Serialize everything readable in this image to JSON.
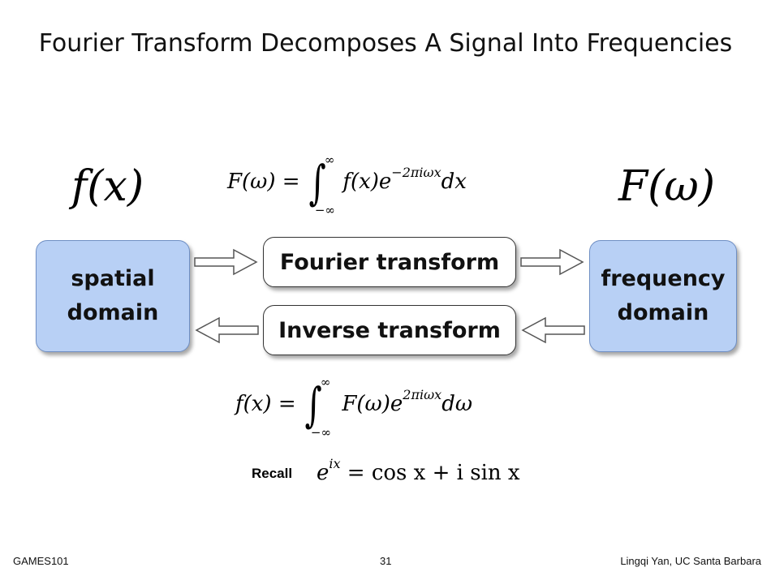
{
  "slide": {
    "title": "Fourier Transform Decomposes A Signal Into Frequencies",
    "footer_left": "GAMES101",
    "page_number": "31",
    "footer_right": "Lingqi Yan, UC Santa Barbara"
  },
  "diagram": {
    "left_symbol": "f(x)",
    "right_symbol": "F(ω)",
    "spatial_box": {
      "line1": "spatial",
      "line2": "domain"
    },
    "frequency_box": {
      "line1": "frequency",
      "line2": "domain"
    },
    "forward_label": "Fourier transform",
    "inverse_label": "Inverse transform",
    "forward_equation": {
      "lhs": "F(ω) =",
      "upper": "∞",
      "lower": "−∞",
      "integrand": "f(x)e",
      "exponent": "−2πiωx",
      "differential": "dx"
    },
    "inverse_equation": {
      "lhs": "f(x) =",
      "upper": "∞",
      "lower": "−∞",
      "integrand": "F(ω)e",
      "exponent": "2πiωx",
      "differential": "dω"
    },
    "recall": {
      "label": "Recall",
      "base": "e",
      "exponent": "ix",
      "rhs": "= cos x + i sin x"
    }
  },
  "colors": {
    "domain_fill": "#b8d0f5",
    "domain_border": "#6f8fc4",
    "arrow_fill": "#ffffff",
    "arrow_stroke": "#555555"
  }
}
